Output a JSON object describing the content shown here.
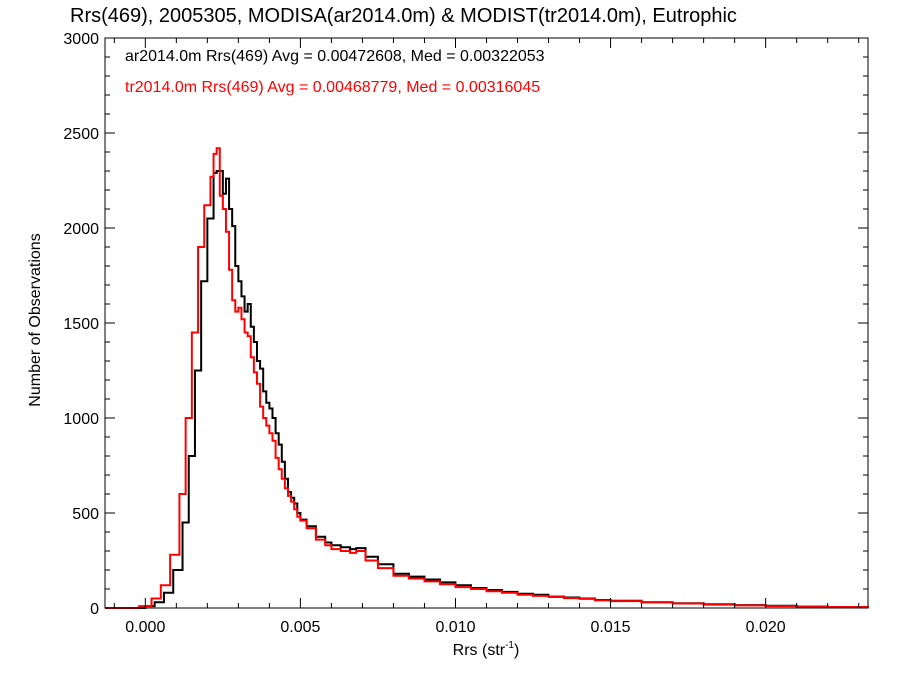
{
  "chart_data": {
    "type": "line",
    "title": "Rrs(469), 2005305, MODISA(ar2014.0m) & MODIST(tr2014.0m), Eutrophic",
    "xlabel_main": "Rrs (str",
    "xlabel_sup": "-1",
    "xlabel_close": ")",
    "ylabel": "Number of Observations",
    "xlim": [
      -0.0013,
      0.0233
    ],
    "ylim": [
      0,
      3000
    ],
    "xticks": [
      0.0,
      0.005,
      0.01,
      0.015,
      0.02
    ],
    "xtick_labels": [
      "0.000",
      "0.005",
      "0.010",
      "0.015",
      "0.020"
    ],
    "yticks": [
      0,
      500,
      1000,
      1500,
      2000,
      2500,
      3000
    ],
    "ytick_labels": [
      "0",
      "500",
      "1000",
      "1500",
      "2000",
      "2500",
      "3000"
    ],
    "grid": false,
    "step": true,
    "series": [
      {
        "name": "ar2014.0m Rrs(469) Avg = 0.00472608, Med = 0.00322053",
        "color": "#000000",
        "points": [
          [
            -0.0013,
            0
          ],
          [
            -0.0005,
            0
          ],
          [
            0.0,
            10
          ],
          [
            0.0003,
            30
          ],
          [
            0.0006,
            80
          ],
          [
            0.0009,
            200
          ],
          [
            0.0012,
            450
          ],
          [
            0.0014,
            800
          ],
          [
            0.0016,
            1250
          ],
          [
            0.0018,
            1720
          ],
          [
            0.002,
            2050
          ],
          [
            0.0022,
            2290
          ],
          [
            0.0023,
            2300
          ],
          [
            0.0025,
            2180
          ],
          [
            0.0026,
            2260
          ],
          [
            0.0027,
            2100
          ],
          [
            0.0028,
            2010
          ],
          [
            0.0029,
            1800
          ],
          [
            0.003,
            1720
          ],
          [
            0.0031,
            1640
          ],
          [
            0.0032,
            1560
          ],
          [
            0.0033,
            1600
          ],
          [
            0.0034,
            1480
          ],
          [
            0.0035,
            1400
          ],
          [
            0.0036,
            1300
          ],
          [
            0.0037,
            1260
          ],
          [
            0.0038,
            1140
          ],
          [
            0.0039,
            1080
          ],
          [
            0.004,
            1050
          ],
          [
            0.0041,
            1000
          ],
          [
            0.0042,
            920
          ],
          [
            0.0043,
            860
          ],
          [
            0.0044,
            770
          ],
          [
            0.0045,
            680
          ],
          [
            0.0046,
            610
          ],
          [
            0.0047,
            580
          ],
          [
            0.0048,
            550
          ],
          [
            0.0049,
            500
          ],
          [
            0.005,
            465
          ],
          [
            0.0052,
            430
          ],
          [
            0.0055,
            375
          ],
          [
            0.0058,
            345
          ],
          [
            0.006,
            330
          ],
          [
            0.0063,
            320
          ],
          [
            0.0066,
            310
          ],
          [
            0.0068,
            315
          ],
          [
            0.0071,
            270
          ],
          [
            0.0075,
            230
          ],
          [
            0.008,
            180
          ],
          [
            0.0085,
            165
          ],
          [
            0.009,
            150
          ],
          [
            0.0095,
            135
          ],
          [
            0.01,
            120
          ],
          [
            0.0105,
            105
          ],
          [
            0.011,
            95
          ],
          [
            0.0115,
            85
          ],
          [
            0.012,
            75
          ],
          [
            0.0125,
            70
          ],
          [
            0.013,
            60
          ],
          [
            0.0135,
            55
          ],
          [
            0.014,
            50
          ],
          [
            0.0145,
            42
          ],
          [
            0.015,
            38
          ],
          [
            0.016,
            30
          ],
          [
            0.017,
            25
          ],
          [
            0.018,
            20
          ],
          [
            0.019,
            15
          ],
          [
            0.02,
            12
          ],
          [
            0.021,
            8
          ],
          [
            0.022,
            5
          ],
          [
            0.0233,
            3
          ]
        ]
      },
      {
        "name": "tr2014.0m Rrs(469) Avg = 0.00468779, Med = 0.00316045",
        "color": "#ff0000",
        "points": [
          [
            -0.0013,
            0
          ],
          [
            -0.0005,
            0
          ],
          [
            -0.0002,
            10
          ],
          [
            0.0002,
            50
          ],
          [
            0.0005,
            120
          ],
          [
            0.0008,
            280
          ],
          [
            0.0011,
            600
          ],
          [
            0.0013,
            1000
          ],
          [
            0.0015,
            1450
          ],
          [
            0.0017,
            1900
          ],
          [
            0.0019,
            2120
          ],
          [
            0.0021,
            2270
          ],
          [
            0.0022,
            2390
          ],
          [
            0.0023,
            2420
          ],
          [
            0.0024,
            2170
          ],
          [
            0.0025,
            2100
          ],
          [
            0.0026,
            1980
          ],
          [
            0.0027,
            1780
          ],
          [
            0.0028,
            1620
          ],
          [
            0.0029,
            1560
          ],
          [
            0.003,
            1580
          ],
          [
            0.0031,
            1520
          ],
          [
            0.0032,
            1450
          ],
          [
            0.0033,
            1430
          ],
          [
            0.0034,
            1320
          ],
          [
            0.0035,
            1240
          ],
          [
            0.0036,
            1180
          ],
          [
            0.0037,
            1060
          ],
          [
            0.0038,
            1000
          ],
          [
            0.0039,
            960
          ],
          [
            0.004,
            920
          ],
          [
            0.0041,
            880
          ],
          [
            0.0042,
            790
          ],
          [
            0.0043,
            730
          ],
          [
            0.0044,
            680
          ],
          [
            0.0045,
            630
          ],
          [
            0.0046,
            590
          ],
          [
            0.0047,
            560
          ],
          [
            0.0048,
            520
          ],
          [
            0.0049,
            480
          ],
          [
            0.005,
            460
          ],
          [
            0.0052,
            420
          ],
          [
            0.0055,
            360
          ],
          [
            0.0058,
            330
          ],
          [
            0.006,
            310
          ],
          [
            0.0063,
            300
          ],
          [
            0.0066,
            290
          ],
          [
            0.0068,
            300
          ],
          [
            0.0071,
            250
          ],
          [
            0.0075,
            210
          ],
          [
            0.008,
            170
          ],
          [
            0.0085,
            155
          ],
          [
            0.009,
            140
          ],
          [
            0.0095,
            125
          ],
          [
            0.01,
            110
          ],
          [
            0.0105,
            100
          ],
          [
            0.011,
            88
          ],
          [
            0.0115,
            80
          ],
          [
            0.012,
            70
          ],
          [
            0.0125,
            64
          ],
          [
            0.013,
            58
          ],
          [
            0.0135,
            52
          ],
          [
            0.014,
            48
          ],
          [
            0.0145,
            40
          ],
          [
            0.015,
            36
          ],
          [
            0.016,
            30
          ],
          [
            0.017,
            24
          ],
          [
            0.018,
            18
          ],
          [
            0.019,
            14
          ],
          [
            0.02,
            10
          ],
          [
            0.021,
            7
          ],
          [
            0.022,
            5
          ],
          [
            0.0233,
            3
          ]
        ]
      }
    ]
  }
}
